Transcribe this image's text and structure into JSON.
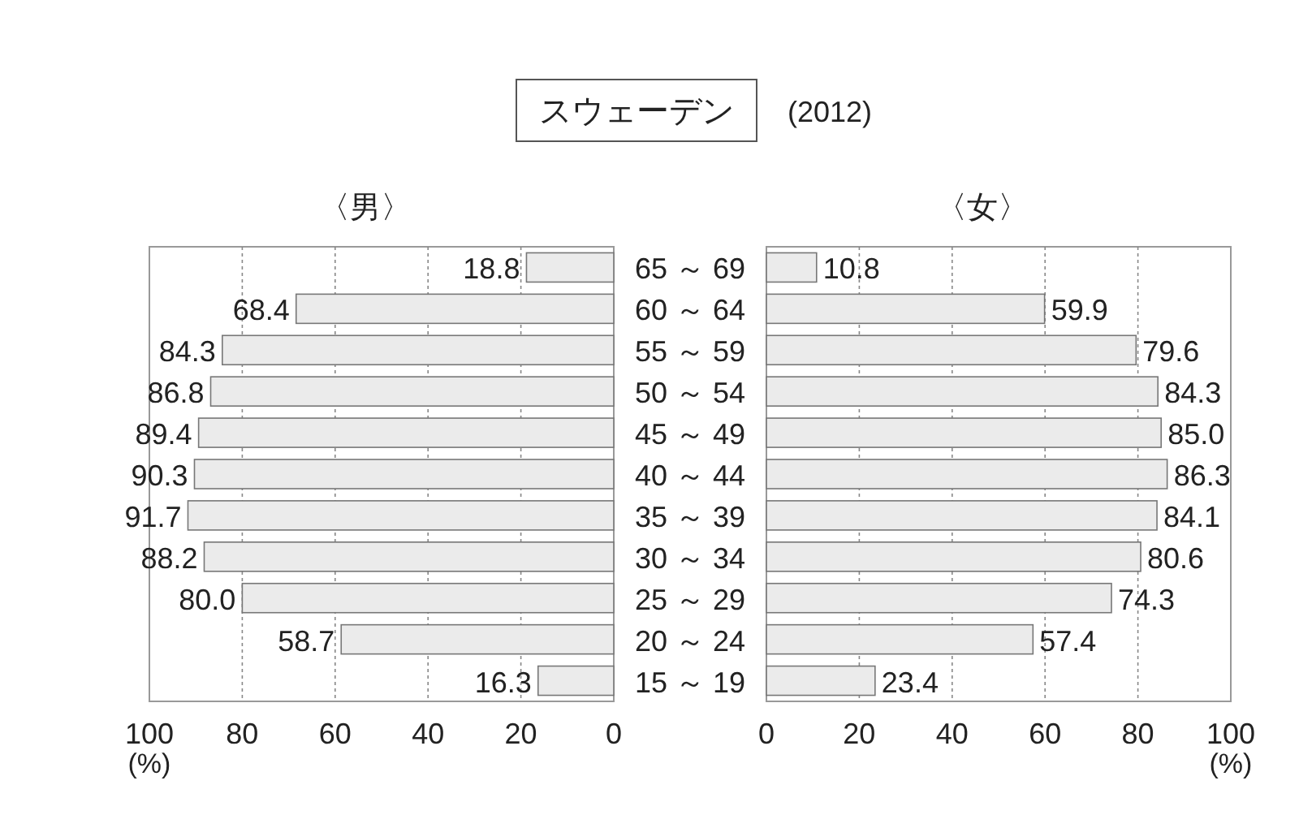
{
  "chart_data": [
    {
      "type": "other",
      "title": "スウェーデン",
      "subtitle": "(2012)"
    },
    {
      "type": "bar",
      "orientation": "horizontal",
      "title": "〈男〉",
      "categories": [
        null,
        null,
        null,
        null,
        null,
        null,
        null,
        null,
        null,
        null,
        null
      ],
      "values": [
        18.8,
        68.4,
        84.3,
        86.8,
        89.4,
        90.3,
        91.7,
        88.2,
        80.0,
        58.7,
        16.3
      ],
      "value_labels": [
        "18.8",
        "68.4",
        "84.3",
        "86.8",
        "89.4",
        "90.3",
        "91.7",
        "88.2",
        "80.0",
        "58.7",
        "16.3"
      ],
      "color": "#ebebeb",
      "xlim": [
        100,
        0
      ],
      "xticks": [
        100,
        80,
        60,
        40,
        20,
        0
      ],
      "xlabel": "(%)",
      "grid": "x"
    },
    {
      "type": "bar",
      "orientation": "horizontal",
      "title": "〈女〉",
      "categories": [
        "65 ～ 69",
        "60 ～ 64",
        "55 ～ 59",
        "50 ～ 54",
        "45 ～ 49",
        "40 ～ 44",
        "35 ～ 39",
        "30 ～ 34",
        "25 ～ 29",
        "20 ～ 24",
        "15 ～ 19"
      ],
      "values": [
        10.8,
        59.9,
        79.6,
        84.3,
        85.0,
        86.3,
        84.1,
        80.6,
        74.3,
        57.4,
        23.4
      ],
      "value_labels": [
        "10.8",
        "59.9",
        "79.6",
        "84.3",
        "85.0",
        "86.3",
        "84.1",
        "80.6",
        "74.3",
        "57.4",
        "23.4"
      ],
      "color": "#ebebeb",
      "xlim": [
        0,
        100
      ],
      "xticks": [
        0,
        20,
        40,
        60,
        80,
        100
      ],
      "xlabel": "(%)",
      "grid": "x"
    }
  ]
}
